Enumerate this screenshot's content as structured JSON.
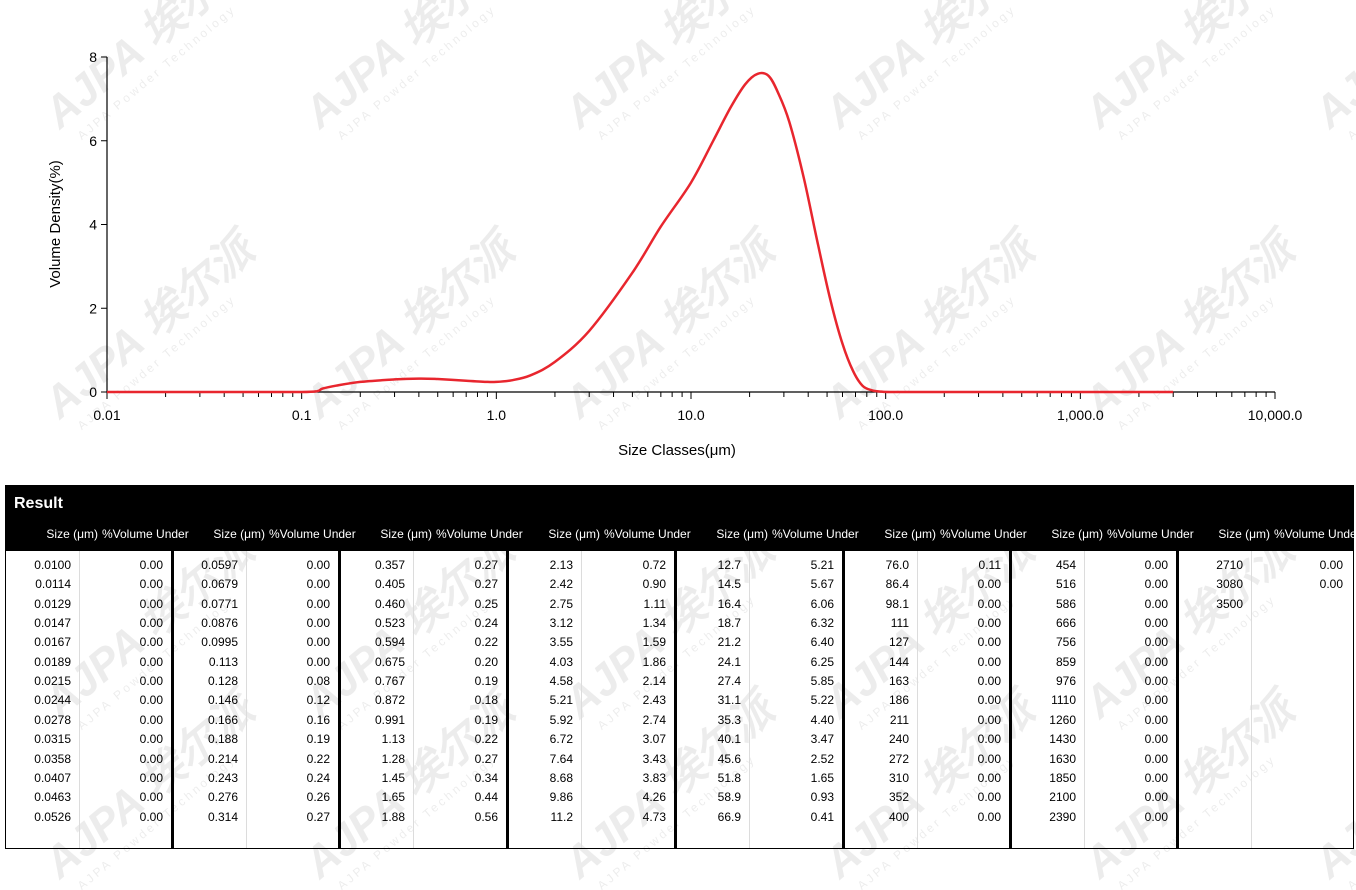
{
  "chart_data": {
    "type": "line",
    "xlabel": "Size Classes(μm)",
    "ylabel": "Volume Density(%)",
    "x_scale": "log",
    "xlim": [
      0.01,
      10000
    ],
    "ylim": [
      0,
      8
    ],
    "x_tick_labels": [
      "0.01",
      "0.1",
      "1.0",
      "10.0",
      "100.0",
      "1,000.0",
      "10,000.0"
    ],
    "y_tick_labels": [
      "0",
      "2",
      "4",
      "6",
      "8"
    ],
    "series_color": "#e8262e",
    "x": [
      0.01,
      0.02,
      0.05,
      0.1,
      0.12,
      0.128,
      0.15,
      0.2,
      0.3,
      0.4,
      0.5,
      0.7,
      0.9,
      1.0,
      1.2,
      1.5,
      2.0,
      3.0,
      5.0,
      7.0,
      10.0,
      13.0,
      16.0,
      19.0,
      22.0,
      25.0,
      28.0,
      32.0,
      38.0,
      45.0,
      52.0,
      60.0,
      68.0,
      76.0,
      85.0,
      95.0,
      110.0,
      200.0,
      500.0,
      1000.0,
      2000.0,
      3000.0
    ],
    "values": [
      0.0,
      0.0,
      0.0,
      0.0,
      0.02,
      0.08,
      0.15,
      0.24,
      0.3,
      0.32,
      0.31,
      0.27,
      0.24,
      0.24,
      0.28,
      0.4,
      0.72,
      1.46,
      2.85,
      3.95,
      5.0,
      6.0,
      6.8,
      7.35,
      7.6,
      7.55,
      7.15,
      6.45,
      5.1,
      3.5,
      2.2,
      1.15,
      0.5,
      0.15,
      0.04,
      0.01,
      0.0,
      0.0,
      0.0,
      0.0,
      0.0,
      0.0
    ]
  },
  "result": {
    "title": "Result",
    "size_header": "Size (μm)",
    "volume_header": "%Volume Under",
    "columns": [
      {
        "sizes": [
          "0.0100",
          "0.0114",
          "0.0129",
          "0.0147",
          "0.0167",
          "0.0189",
          "0.0215",
          "0.0244",
          "0.0278",
          "0.0315",
          "0.0358",
          "0.0407",
          "0.0463",
          "0.0526"
        ],
        "volumes": [
          "0.00",
          "0.00",
          "0.00",
          "0.00",
          "0.00",
          "0.00",
          "0.00",
          "0.00",
          "0.00",
          "0.00",
          "0.00",
          "0.00",
          "0.00",
          "0.00"
        ]
      },
      {
        "sizes": [
          "0.0597",
          "0.0679",
          "0.0771",
          "0.0876",
          "0.0995",
          "0.113",
          "0.128",
          "0.146",
          "0.166",
          "0.188",
          "0.214",
          "0.243",
          "0.276",
          "0.314"
        ],
        "volumes": [
          "0.00",
          "0.00",
          "0.00",
          "0.00",
          "0.00",
          "0.00",
          "0.08",
          "0.12",
          "0.16",
          "0.19",
          "0.22",
          "0.24",
          "0.26",
          "0.27"
        ]
      },
      {
        "sizes": [
          "0.357",
          "0.405",
          "0.460",
          "0.523",
          "0.594",
          "0.675",
          "0.767",
          "0.872",
          "0.991",
          "1.13",
          "1.28",
          "1.45",
          "1.65",
          "1.88"
        ],
        "volumes": [
          "0.27",
          "0.27",
          "0.25",
          "0.24",
          "0.22",
          "0.20",
          "0.19",
          "0.18",
          "0.19",
          "0.22",
          "0.27",
          "0.34",
          "0.44",
          "0.56"
        ]
      },
      {
        "sizes": [
          "2.13",
          "2.42",
          "2.75",
          "3.12",
          "3.55",
          "4.03",
          "4.58",
          "5.21",
          "5.92",
          "6.72",
          "7.64",
          "8.68",
          "9.86",
          "11.2"
        ],
        "volumes": [
          "0.72",
          "0.90",
          "1.11",
          "1.34",
          "1.59",
          "1.86",
          "2.14",
          "2.43",
          "2.74",
          "3.07",
          "3.43",
          "3.83",
          "4.26",
          "4.73"
        ]
      },
      {
        "sizes": [
          "12.7",
          "14.5",
          "16.4",
          "18.7",
          "21.2",
          "24.1",
          "27.4",
          "31.1",
          "35.3",
          "40.1",
          "45.6",
          "51.8",
          "58.9",
          "66.9"
        ],
        "volumes": [
          "5.21",
          "5.67",
          "6.06",
          "6.32",
          "6.40",
          "6.25",
          "5.85",
          "5.22",
          "4.40",
          "3.47",
          "2.52",
          "1.65",
          "0.93",
          "0.41"
        ]
      },
      {
        "sizes": [
          "76.0",
          "86.4",
          "98.1",
          "111",
          "127",
          "144",
          "163",
          "186",
          "211",
          "240",
          "272",
          "310",
          "352",
          "400"
        ],
        "volumes": [
          "0.11",
          "0.00",
          "0.00",
          "0.00",
          "0.00",
          "0.00",
          "0.00",
          "0.00",
          "0.00",
          "0.00",
          "0.00",
          "0.00",
          "0.00",
          "0.00"
        ]
      },
      {
        "sizes": [
          "454",
          "516",
          "586",
          "666",
          "756",
          "859",
          "976",
          "1110",
          "1260",
          "1430",
          "1630",
          "1850",
          "2100",
          "2390"
        ],
        "volumes": [
          "0.00",
          "0.00",
          "0.00",
          "0.00",
          "0.00",
          "0.00",
          "0.00",
          "0.00",
          "0.00",
          "0.00",
          "0.00",
          "0.00",
          "0.00",
          "0.00"
        ]
      },
      {
        "sizes": [
          "2710",
          "3080",
          "3500"
        ],
        "volumes": [
          "0.00",
          "0.00",
          ""
        ]
      }
    ]
  },
  "watermark": {
    "brand": "AJPA",
    "brand_cn": "埃尔派",
    "tagline": "AJPA Powder Technology"
  }
}
